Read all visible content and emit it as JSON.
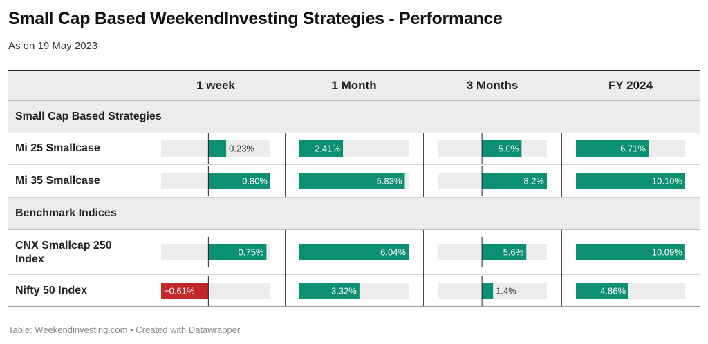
{
  "title": "Small Cap Based WeekendInvesting Strategies - Performance",
  "subtitle": "As on 19 May 2023",
  "footer": "Table: Weekendinvesting.com • Created with Datawrapper",
  "colors": {
    "positive": "#0d8f73",
    "negative": "#c42727",
    "track": "#ececec",
    "header_bg": "#ececec"
  },
  "chart_data": {
    "type": "table",
    "columns": [
      "1 week",
      "1 Month",
      "3 Months",
      "FY 2024"
    ],
    "column_ranges": [
      [
        -0.61,
        0.8
      ],
      [
        0,
        6.04
      ],
      [
        -5.6,
        8.2
      ],
      [
        0,
        10.1
      ]
    ],
    "groups": [
      {
        "name": "Small Cap Based Strategies",
        "rows": [
          {
            "name": "Mi 25 Smallcase",
            "values": [
              0.23,
              2.41,
              5.0,
              6.71
            ],
            "labels": [
              "0.23%",
              "2.41%",
              "5.0%",
              "6.71%"
            ]
          },
          {
            "name": "Mi 35 Smallcase",
            "values": [
              0.8,
              5.83,
              8.2,
              10.1
            ],
            "labels": [
              "0.80%",
              "5.83%",
              "8.2%",
              "10.10%"
            ]
          }
        ]
      },
      {
        "name": "Benchmark Indices",
        "rows": [
          {
            "name": "CNX Smallcap 250 Index",
            "values": [
              0.75,
              6.04,
              5.6,
              10.09
            ],
            "labels": [
              "0.75%",
              "6.04%",
              "5.6%",
              "10.09%"
            ]
          },
          {
            "name": "Nifty 50 Index",
            "values": [
              -0.61,
              3.32,
              1.4,
              4.86
            ],
            "labels": [
              "−0.61%",
              "3.32%",
              "1.4%",
              "4.86%"
            ]
          }
        ]
      }
    ]
  }
}
